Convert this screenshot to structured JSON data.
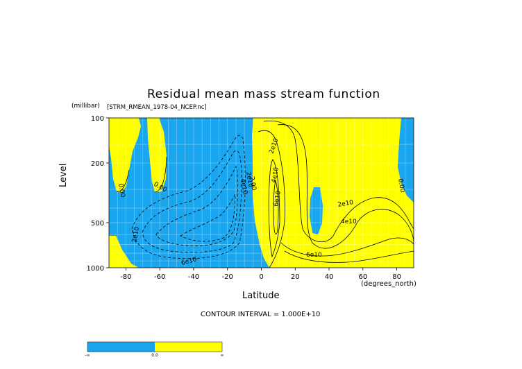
{
  "chart_data": {
    "type": "contour",
    "title": "Residual mean mass stream function",
    "source_file": "[STRM_RMEAN_1978-04_NCEP.nc]",
    "xlabel": "Latitude",
    "x_units": "(degrees_north)",
    "ylabel": "Level",
    "y_units": "(millibar)",
    "xlim": [
      -90,
      90
    ],
    "ylim": [
      1000,
      100
    ],
    "y_scale": "log",
    "x_ticks": [
      -80,
      -60,
      -40,
      -20,
      0,
      20,
      40,
      60,
      80
    ],
    "y_ticks": [
      100,
      200,
      500,
      1000
    ],
    "grid": true,
    "contour_interval_text": "CONTOUR INTERVAL = 1.000E+10",
    "contour_labels": [
      "0.00",
      "0.00",
      "2e10",
      "4e10",
      "6e10",
      "2e10",
      "2e10",
      "4e10",
      "6e10",
      "2e10",
      "4e10",
      "6e10",
      "0.00",
      "2.00"
    ],
    "fill_colors": {
      "negative": "#1aa6ef",
      "positive": "#ffff00"
    },
    "colorbar": {
      "labels": [
        "-∞",
        "0.0",
        "∞"
      ]
    }
  }
}
